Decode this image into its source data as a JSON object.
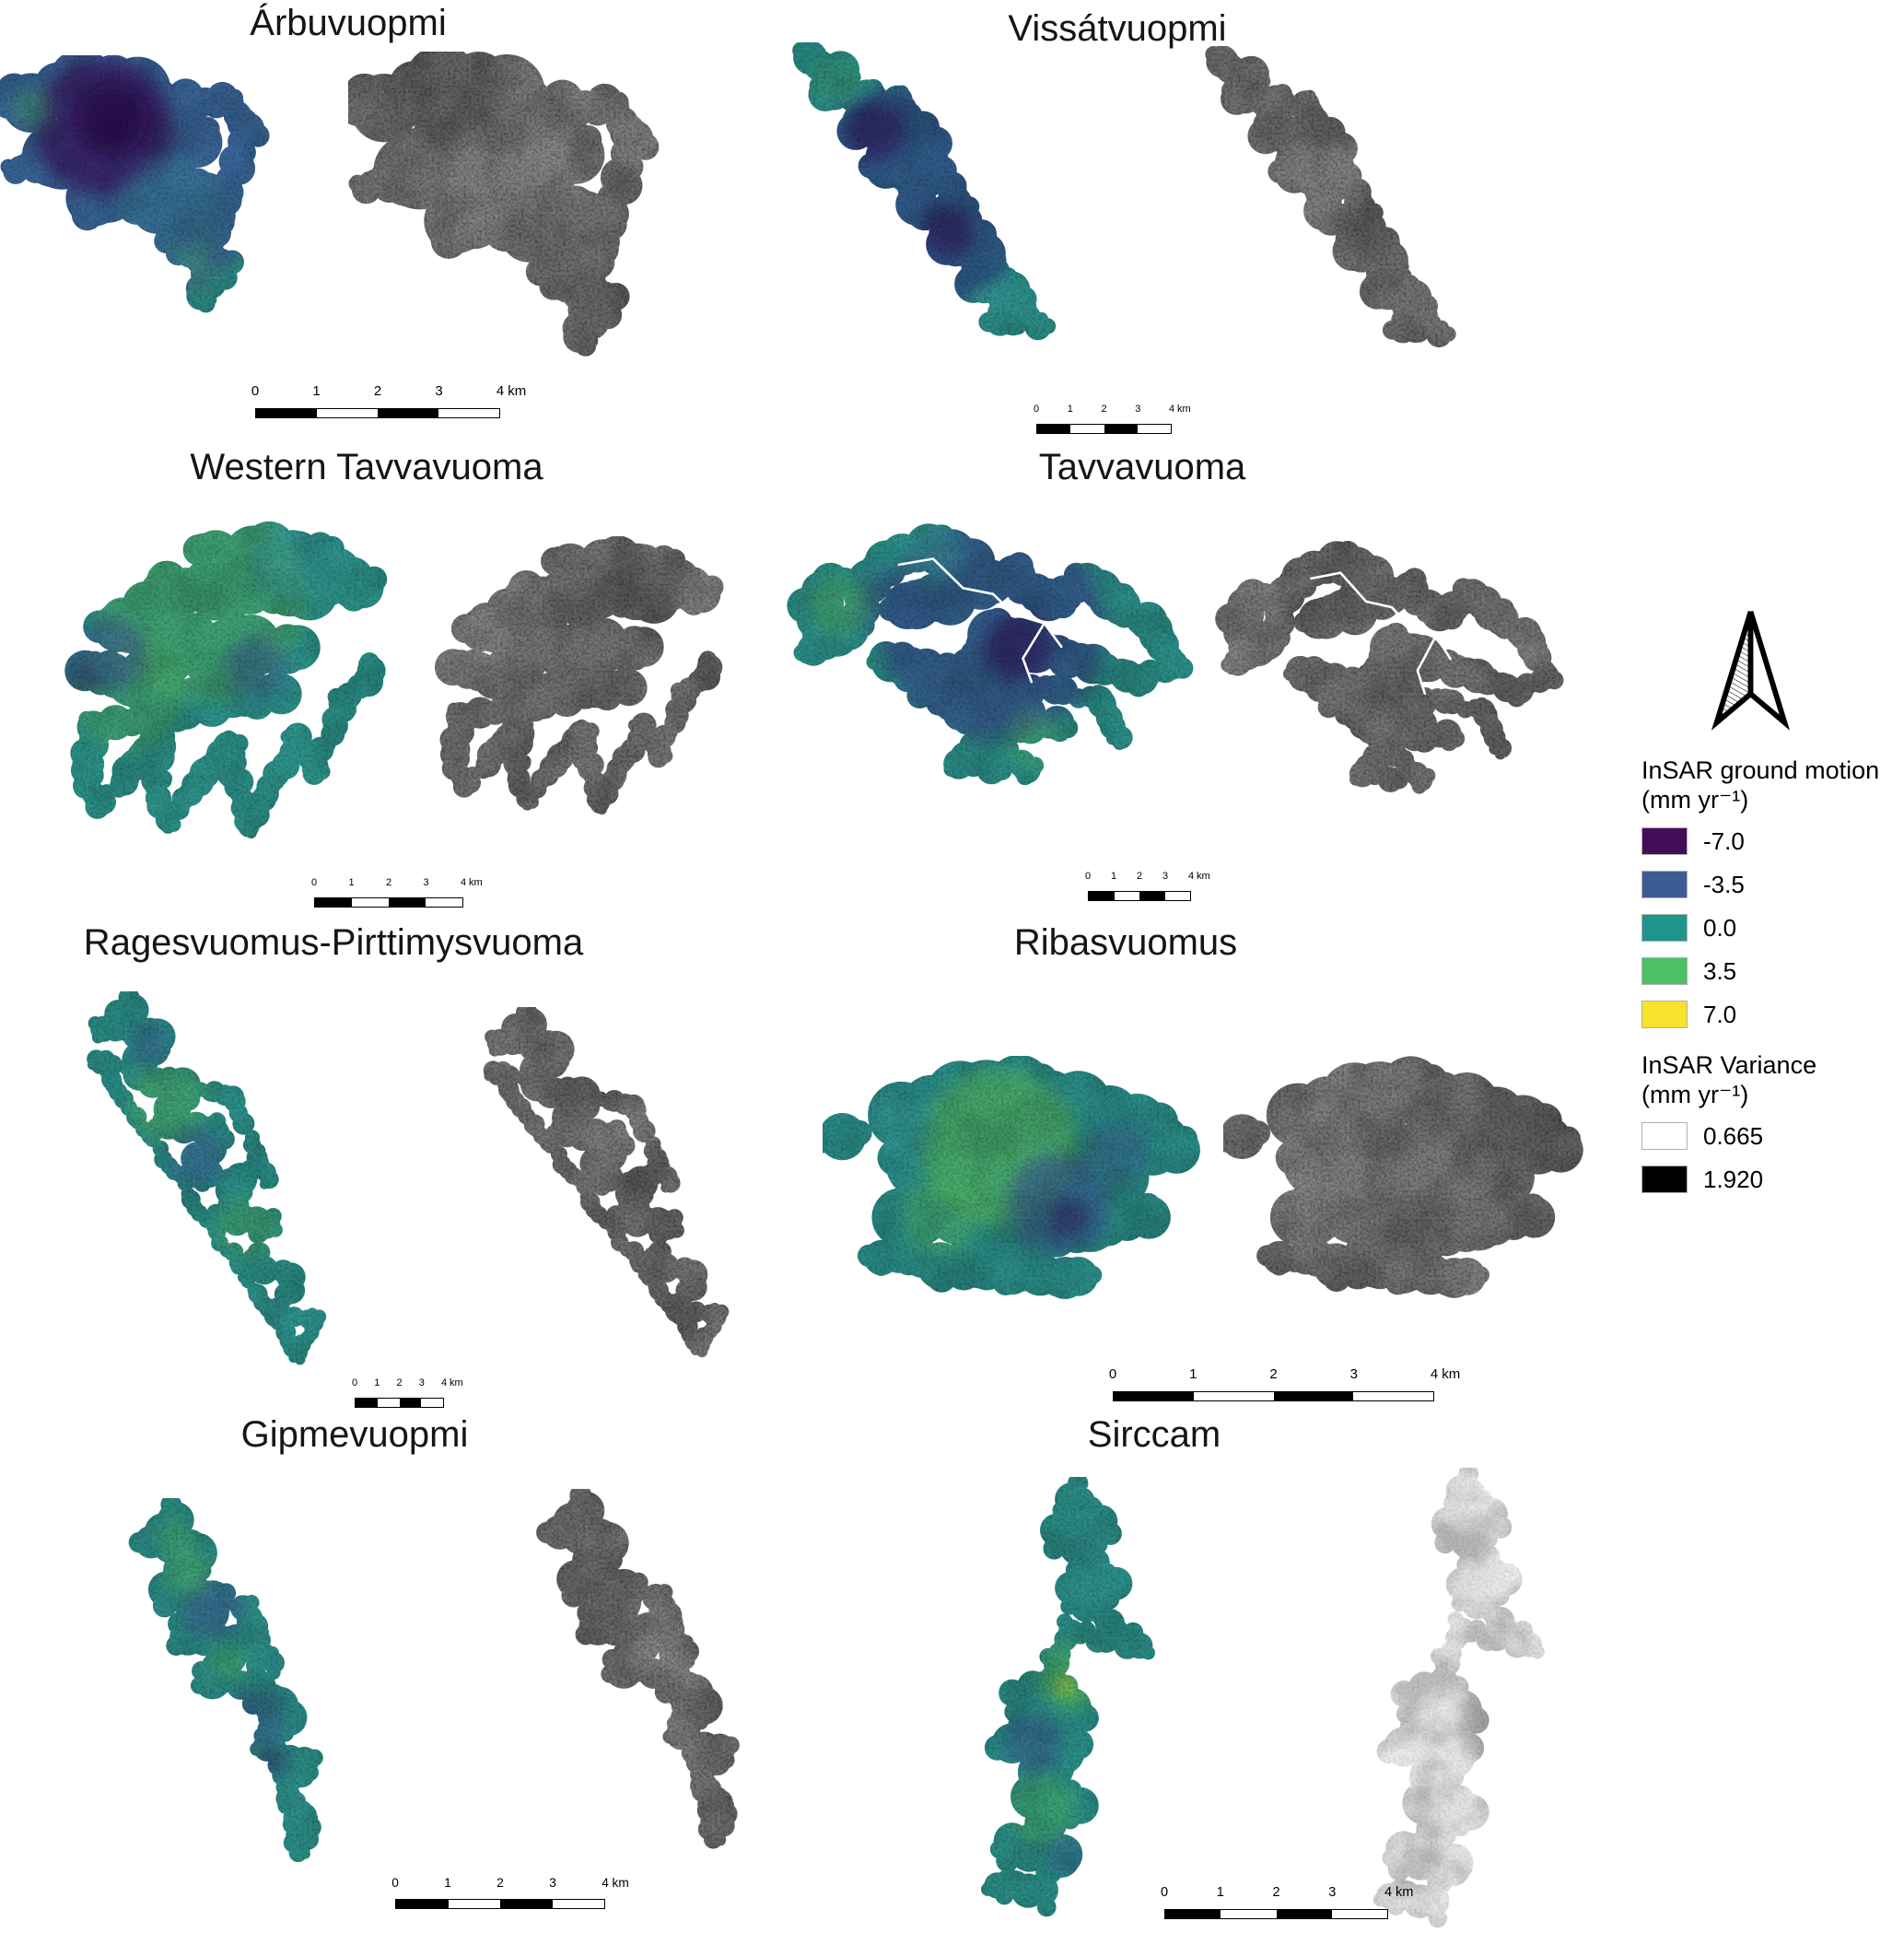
{
  "figure": {
    "sites": [
      {
        "name": "Árbuvuopmi"
      },
      {
        "name": "Vissátvuopmi"
      },
      {
        "name": "Western Tavvavuoma"
      },
      {
        "name": "Tavvavuoma"
      },
      {
        "name": "Ragesvuomus-Pirttimysvuoma"
      },
      {
        "name": "Ribasvuomus"
      },
      {
        "name": "Gipmevuopmi"
      },
      {
        "name": "Sirccam"
      }
    ],
    "scalebar": {
      "ticks": [
        "0",
        "1",
        "2",
        "3",
        "4"
      ],
      "unit": "km"
    },
    "legends": {
      "ground_motion": {
        "title": "InSAR ground motion",
        "unit": "(mm  yr⁻¹)",
        "entries": [
          {
            "value": "-7.0",
            "color": "#450d59"
          },
          {
            "value": "-3.5",
            "color": "#3e5c94"
          },
          {
            "value": "0.0",
            "color": "#1f948b"
          },
          {
            "value": "3.5",
            "color": "#4cc164"
          },
          {
            "value": "7.0",
            "color": "#f8e22b"
          }
        ]
      },
      "variance": {
        "title": "InSAR Variance",
        "unit": "(mm yr⁻¹)",
        "entries": [
          {
            "value": "0.665",
            "color": "#ffffff"
          },
          {
            "value": "1.920",
            "color": "#000000"
          }
        ]
      }
    }
  }
}
